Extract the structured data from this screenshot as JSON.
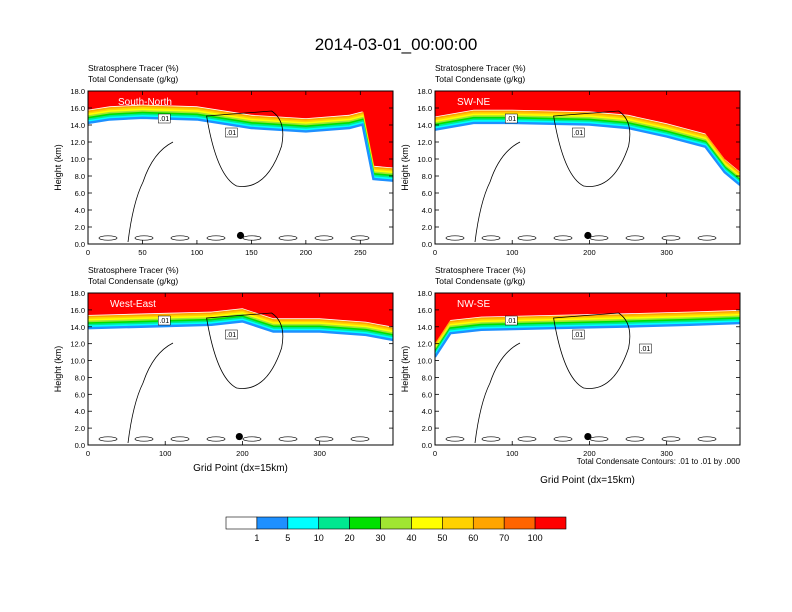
{
  "figure": {
    "title": "2014-03-01_00:00:00",
    "contour_note": "Total Condensate Contours: .01 to .01 by .000"
  },
  "colorbar": {
    "colors": [
      "#ffffff",
      "#1e90ff",
      "#00ffff",
      "#00e890",
      "#00e000",
      "#a0e632",
      "#ffff00",
      "#ffd200",
      "#ffa500",
      "#ff6400",
      "#ff0000"
    ],
    "labels": [
      "1",
      "5",
      "10",
      "20",
      "30",
      "40",
      "50",
      "60",
      "70",
      "100"
    ]
  },
  "chart_data": [
    {
      "type": "heatmap",
      "panel": "South-North",
      "title_lines": [
        "Stratosphere Tracer   (%)",
        "Total Condensate   (g/kg)"
      ],
      "ylabel": "Height (km)",
      "xlabel": "",
      "xlim": [
        0,
        280
      ],
      "ylim": [
        0,
        18
      ],
      "xticks": [
        "0",
        "50",
        "100",
        "150",
        "200",
        "250"
      ],
      "xtick_values": [
        0,
        50,
        100,
        150,
        200,
        250
      ],
      "yticks": [
        "0.0",
        "2.0",
        "4.0",
        "6.0",
        "8.0",
        "10.0",
        "12.0",
        "14.0",
        "16.0",
        "18.0"
      ],
      "contour_labels": [
        ".01",
        ".01"
      ],
      "tropopause_km": [
        [
          0,
          15.8
        ],
        [
          20,
          16.2
        ],
        [
          50,
          16.4
        ],
        [
          100,
          16.2
        ],
        [
          150,
          15.2
        ],
        [
          200,
          14.8
        ],
        [
          240,
          15.2
        ],
        [
          252,
          15.6
        ],
        [
          262,
          9.2
        ],
        [
          280,
          9.0
        ]
      ],
      "marker": {
        "x": 140,
        "y": 1.0
      }
    },
    {
      "type": "heatmap",
      "panel": "SW-NE",
      "title_lines": [
        "Stratosphere Tracer   (%)",
        "Total Condensate   (g/kg)"
      ],
      "ylabel": "Height (km)",
      "xlabel": "",
      "xlim": [
        0,
        395
      ],
      "ylim": [
        0,
        18
      ],
      "xticks": [
        "0",
        "100",
        "200",
        "300"
      ],
      "xtick_values": [
        0,
        100,
        200,
        300
      ],
      "yticks": [
        "0.0",
        "2.0",
        "4.0",
        "6.0",
        "8.0",
        "10.0",
        "12.0",
        "14.0",
        "16.0",
        "18.0"
      ],
      "contour_labels": [
        ".01",
        ".01"
      ],
      "tropopause_km": [
        [
          0,
          15.0
        ],
        [
          50,
          15.8
        ],
        [
          100,
          15.8
        ],
        [
          200,
          15.6
        ],
        [
          250,
          15.2
        ],
        [
          300,
          14.2
        ],
        [
          350,
          13.0
        ],
        [
          375,
          10.0
        ],
        [
          395,
          8.5
        ]
      ],
      "marker": {
        "x": 198,
        "y": 1.0
      }
    },
    {
      "type": "heatmap",
      "panel": "West-East",
      "title_lines": [
        "Stratosphere Tracer   (%)",
        "Total Condensate   (g/kg)"
      ],
      "ylabel": "Height (km)",
      "xlabel": "Grid Point (dx=15km)",
      "xlim": [
        0,
        395
      ],
      "ylim": [
        0,
        18
      ],
      "xticks": [
        "0",
        "100",
        "200",
        "300"
      ],
      "xtick_values": [
        0,
        100,
        200,
        300
      ],
      "yticks": [
        "0.0",
        "2.0",
        "4.0",
        "6.0",
        "8.0",
        "10.0",
        "12.0",
        "14.0",
        "16.0",
        "18.0"
      ],
      "contour_labels": [
        ".01",
        ".01"
      ],
      "tropopause_km": [
        [
          0,
          15.4
        ],
        [
          80,
          15.6
        ],
        [
          160,
          15.8
        ],
        [
          200,
          16.2
        ],
        [
          240,
          15.0
        ],
        [
          300,
          15.0
        ],
        [
          360,
          14.6
        ],
        [
          395,
          14.0
        ]
      ],
      "marker": {
        "x": 196,
        "y": 1.0
      }
    },
    {
      "type": "heatmap",
      "panel": "NW-SE",
      "title_lines": [
        "Stratosphere Tracer   (%)",
        "Total Condensate   (g/kg)"
      ],
      "ylabel": "Height (km)",
      "xlabel": "Grid Point (dx=15km)",
      "xlim": [
        0,
        395
      ],
      "ylim": [
        0,
        18
      ],
      "xticks": [
        "0",
        "100",
        "200",
        "300"
      ],
      "xtick_values": [
        0,
        100,
        200,
        300
      ],
      "yticks": [
        "0.0",
        "2.0",
        "4.0",
        "6.0",
        "8.0",
        "10.0",
        "12.0",
        "14.0",
        "16.0",
        "18.0"
      ],
      "contour_labels": [
        ".01",
        ".01",
        ".01"
      ],
      "tropopause_km": [
        [
          0,
          12.0
        ],
        [
          20,
          14.8
        ],
        [
          60,
          15.2
        ],
        [
          150,
          15.4
        ],
        [
          250,
          15.6
        ],
        [
          330,
          15.8
        ],
        [
          395,
          16.0
        ]
      ],
      "marker": {
        "x": 198,
        "y": 1.0
      }
    }
  ]
}
